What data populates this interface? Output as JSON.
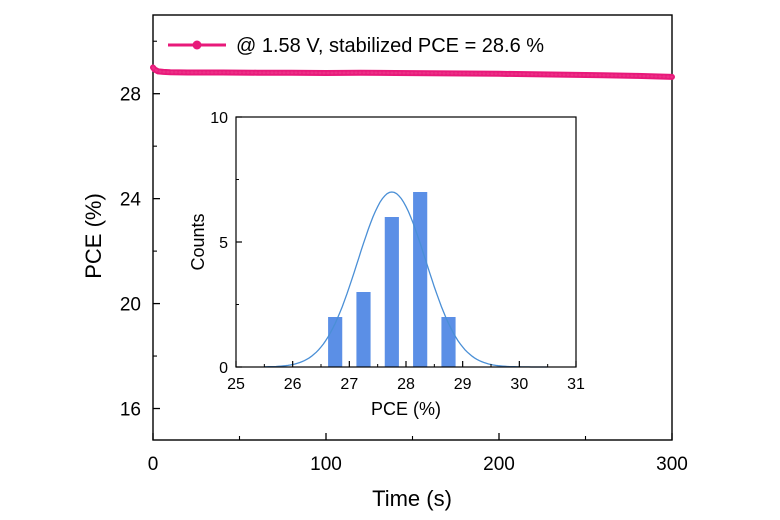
{
  "chart_data": [
    {
      "type": "line",
      "name": "main-pce-time",
      "xlabel": "Time (s)",
      "ylabel": "PCE (%)",
      "xlim": [
        0,
        300
      ],
      "ylim": [
        14.8,
        31.0
      ],
      "xticks": [
        0,
        100,
        200,
        300
      ],
      "yticks": [
        16,
        20,
        24,
        28
      ],
      "series": [
        {
          "name": "@ 1.58 V, stabilized PCE = 28.6 %",
          "color": "#e8197a",
          "x": [
            0,
            1,
            3,
            6,
            10,
            20,
            40,
            60,
            80,
            100,
            120,
            140,
            160,
            180,
            200,
            220,
            240,
            260,
            280,
            300
          ],
          "y": [
            29.0,
            28.92,
            28.85,
            28.83,
            28.82,
            28.81,
            28.81,
            28.8,
            28.8,
            28.79,
            28.8,
            28.79,
            28.78,
            28.77,
            28.76,
            28.74,
            28.72,
            28.7,
            28.68,
            28.64
          ]
        }
      ],
      "legend": "top"
    },
    {
      "type": "bar",
      "name": "inset-histogram",
      "xlabel": "PCE (%)",
      "ylabel": "Counts",
      "xlim": [
        25,
        31
      ],
      "ylim": [
        0,
        10
      ],
      "xticks": [
        25,
        26,
        27,
        28,
        29,
        30,
        31
      ],
      "yticks": [
        0,
        5,
        10
      ],
      "bar_centers": [
        26.75,
        27.25,
        27.75,
        28.25,
        28.75
      ],
      "bar_width": 0.25,
      "values": [
        2,
        3,
        6,
        7,
        2
      ],
      "bar_color": "#5b8fe6",
      "fit": {
        "type": "gaussian",
        "mean": 27.75,
        "sigma": 0.6,
        "amplitude": 7,
        "color": "#4a8fd6"
      }
    }
  ]
}
